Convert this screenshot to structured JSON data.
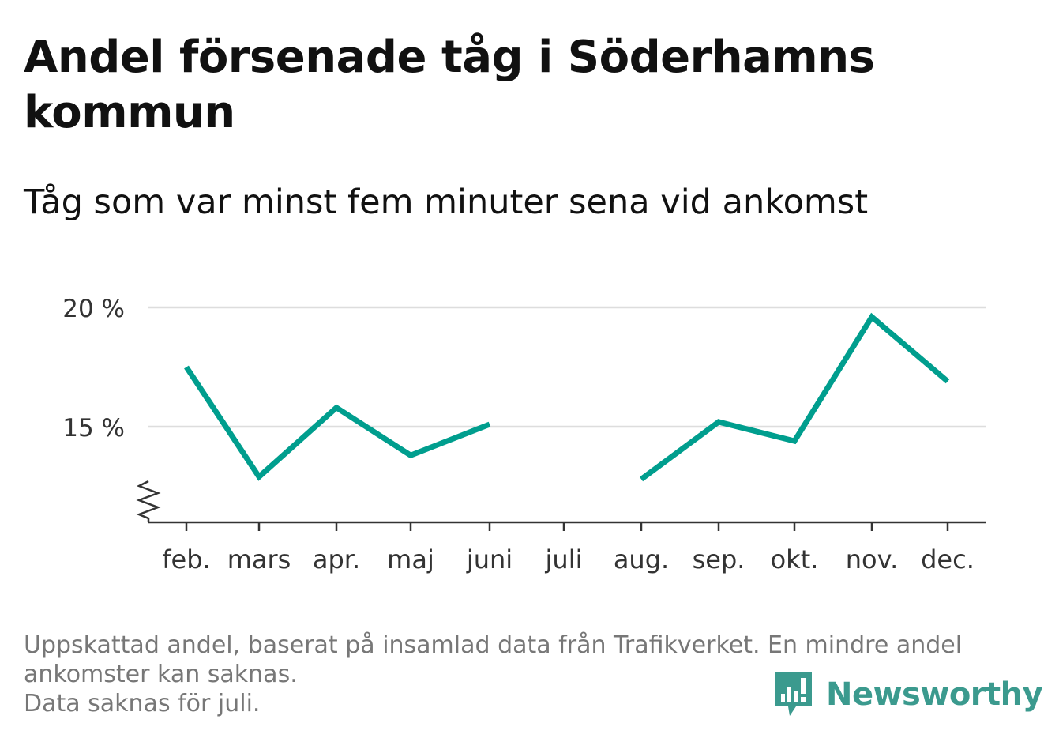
{
  "title": "Andel försenade tåg i Söderhamns kommun",
  "subtitle": "Tåg som var minst fem minuter sena vid ankomst",
  "chart_data": {
    "type": "line",
    "categories": [
      "feb.",
      "mars",
      "apr.",
      "maj",
      "juni",
      "juli",
      "aug.",
      "sep.",
      "okt.",
      "nov.",
      "dec."
    ],
    "series": [
      {
        "values": [
          17.5,
          12.9,
          15.8,
          13.8,
          15.1,
          null,
          12.8,
          15.2,
          14.4,
          19.6,
          16.9
        ],
        "color": "#009e8e"
      }
    ],
    "ylim": [
      11,
      20
    ],
    "yticks": [
      15,
      20
    ],
    "ytick_labels": [
      "15 %",
      "20 %"
    ],
    "y_axis_break": true,
    "grid": true,
    "xlabel": "",
    "ylabel": ""
  },
  "footnote": {
    "lines": [
      "Uppskattad andel, baserat på insamlad data från Trafikverket. En mindre andel",
      "ankomster kan saknas.",
      "Data saknas för juli."
    ]
  },
  "brand": {
    "name": "Newsworthy",
    "icon": "newsworthy-logo-icon",
    "color": "#3b9a8e"
  }
}
